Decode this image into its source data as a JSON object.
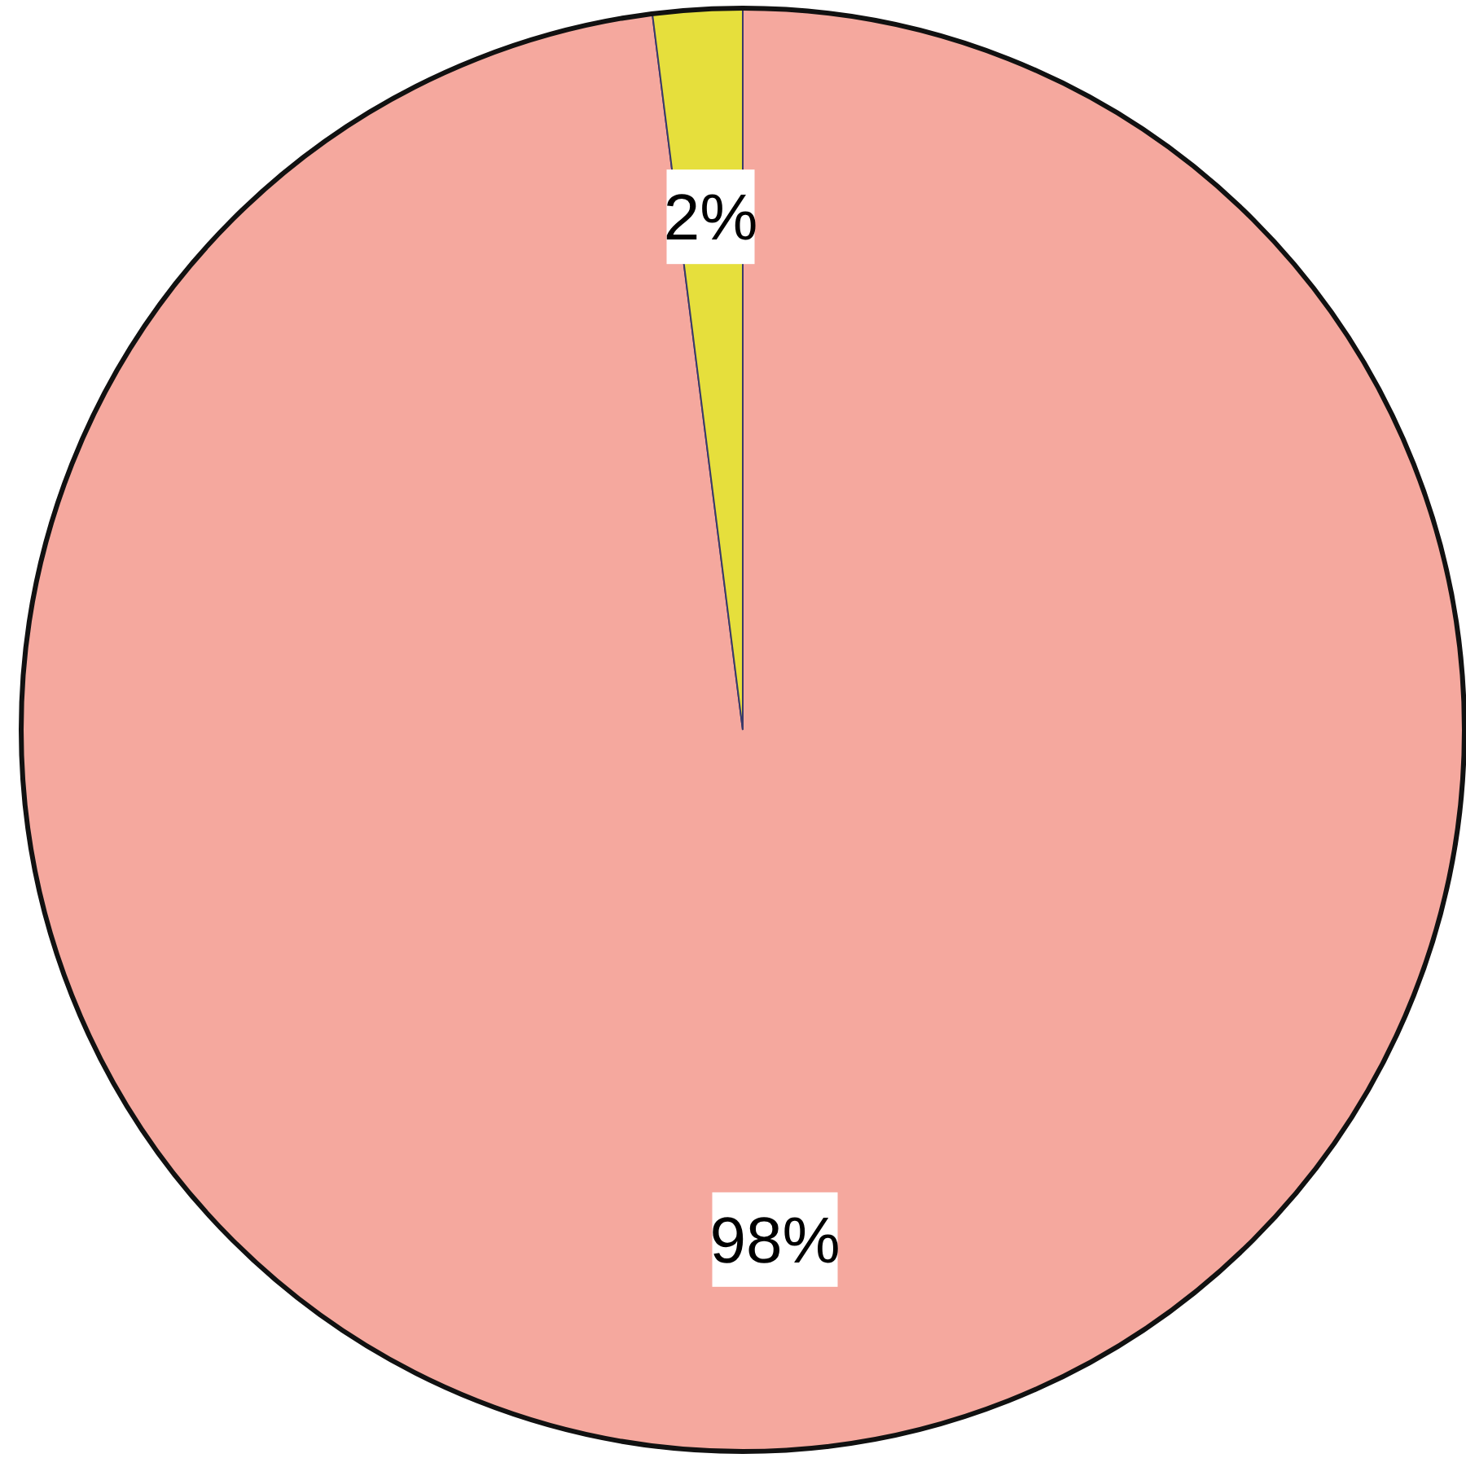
{
  "chart_data": {
    "type": "pie",
    "categories": [
      null,
      null
    ],
    "values": [
      98,
      2
    ],
    "colors": [
      "#f5a89e",
      "#e6df3c"
    ],
    "value_labels": [
      "98%",
      "2%"
    ]
  }
}
